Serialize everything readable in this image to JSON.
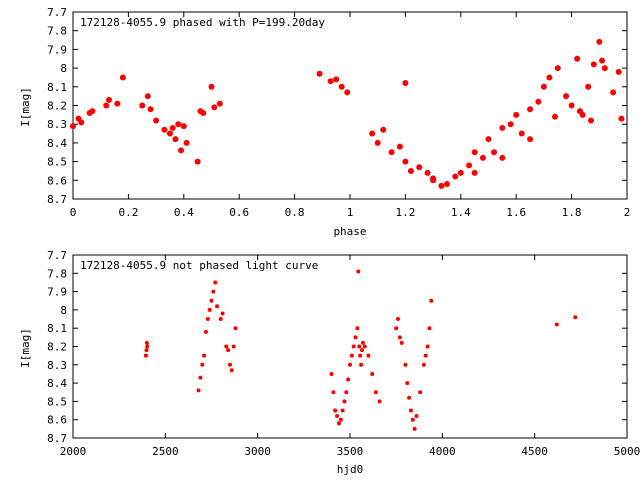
{
  "chart_data": [
    {
      "type": "scatter",
      "title": "172128-4055.9 phased with P=199.20day",
      "xlabel": "phase",
      "ylabel": "I[mag]",
      "xlim": [
        0,
        2
      ],
      "ylim": [
        8.7,
        7.7
      ],
      "y_inverted": true,
      "xticks": [
        "0",
        "0.2",
        "0.4",
        "0.6",
        "0.8",
        "1",
        "1.2",
        "1.4",
        "1.6",
        "1.8",
        "2"
      ],
      "yticks": [
        "7.7",
        "7.8",
        "7.9",
        "8",
        "8.1",
        "8.2",
        "8.3",
        "8.4",
        "8.5",
        "8.6",
        "8.7"
      ],
      "marker_color": "#ff0000",
      "x": [
        0.0,
        0.02,
        0.03,
        0.06,
        0.07,
        0.12,
        0.13,
        0.16,
        0.18,
        0.25,
        0.27,
        0.28,
        0.3,
        0.33,
        0.35,
        0.36,
        0.37,
        0.38,
        0.39,
        0.4,
        0.41,
        0.45,
        0.46,
        0.47,
        0.5,
        0.51,
        0.53,
        0.89,
        0.93,
        0.95,
        0.97,
        0.99,
        1.08,
        1.1,
        1.12,
        1.15,
        1.18,
        1.2,
        1.22,
        1.25,
        1.28,
        1.3,
        1.33,
        1.35,
        1.38,
        1.4,
        1.43,
        1.45,
        1.48,
        1.5,
        1.52,
        1.55,
        1.58,
        1.6,
        1.62,
        1.65,
        1.68,
        1.7,
        1.72,
        1.75,
        1.78,
        1.8,
        1.82,
        1.84,
        1.86,
        1.88,
        1.9,
        1.92,
        1.95,
        1.98,
        1.2,
        1.3,
        1.45,
        1.55,
        1.65,
        1.74,
        1.83,
        1.87,
        1.91,
        1.97
      ],
      "y": [
        8.31,
        8.27,
        8.29,
        8.24,
        8.23,
        8.2,
        8.17,
        8.19,
        8.05,
        8.2,
        8.15,
        8.22,
        8.28,
        8.33,
        8.35,
        8.32,
        8.38,
        8.3,
        8.44,
        8.31,
        8.4,
        8.5,
        8.23,
        8.24,
        8.1,
        8.21,
        8.19,
        8.03,
        8.07,
        8.06,
        8.1,
        8.13,
        8.35,
        8.4,
        8.33,
        8.45,
        8.42,
        8.5,
        8.55,
        8.53,
        8.56,
        8.6,
        8.63,
        8.62,
        8.58,
        8.56,
        8.52,
        8.45,
        8.48,
        8.38,
        8.45,
        8.32,
        8.3,
        8.25,
        8.35,
        8.22,
        8.18,
        8.1,
        8.05,
        8.0,
        8.15,
        8.2,
        7.95,
        8.25,
        8.1,
        7.98,
        7.86,
        8.0,
        8.13,
        8.27,
        8.08,
        8.59,
        8.56,
        8.48,
        8.38,
        8.26,
        8.23,
        8.28,
        7.96,
        8.02
      ]
    },
    {
      "type": "scatter",
      "title": "172128-4055.9 not phased light curve",
      "xlabel": "hjd0",
      "ylabel": "I[mag]",
      "xlim": [
        2000,
        5000
      ],
      "ylim": [
        8.7,
        7.7
      ],
      "y_inverted": true,
      "xticks": [
        "2000",
        "2500",
        "3000",
        "3500",
        "4000",
        "4500",
        "5000"
      ],
      "yticks": [
        "7.7",
        "7.8",
        "7.9",
        "8",
        "8.1",
        "8.2",
        "8.3",
        "8.4",
        "8.5",
        "8.6",
        "8.7"
      ],
      "marker_color": "#ff0000",
      "x": [
        2395,
        2398,
        2400,
        2402,
        2680,
        2690,
        2700,
        2710,
        2720,
        2730,
        2740,
        2750,
        2760,
        2770,
        2780,
        2800,
        2810,
        2830,
        2840,
        2850,
        2860,
        2870,
        2880,
        3400,
        3410,
        3420,
        3430,
        3440,
        3450,
        3460,
        3470,
        3480,
        3490,
        3500,
        3510,
        3520,
        3530,
        3540,
        3545,
        3550,
        3555,
        3560,
        3565,
        3570,
        3580,
        3600,
        3620,
        3640,
        3660,
        3750,
        3760,
        3770,
        3780,
        3800,
        3810,
        3820,
        3830,
        3840,
        3850,
        3860,
        3880,
        3900,
        3910,
        3920,
        3930,
        3940,
        4620,
        4720
      ],
      "y": [
        8.25,
        8.22,
        8.18,
        8.2,
        8.44,
        8.37,
        8.3,
        8.25,
        8.12,
        8.05,
        8.0,
        7.95,
        7.9,
        7.85,
        7.98,
        8.05,
        8.02,
        8.2,
        8.22,
        8.3,
        8.33,
        8.2,
        8.1,
        8.35,
        8.45,
        8.55,
        8.58,
        8.62,
        8.6,
        8.55,
        8.5,
        8.45,
        8.38,
        8.3,
        8.25,
        8.2,
        8.15,
        8.1,
        7.79,
        8.2,
        8.25,
        8.3,
        8.22,
        8.18,
        8.2,
        8.25,
        8.35,
        8.45,
        8.5,
        8.1,
        8.05,
        8.15,
        8.18,
        8.3,
        8.4,
        8.48,
        8.55,
        8.6,
        8.65,
        8.58,
        8.45,
        8.3,
        8.25,
        8.2,
        8.1,
        7.95,
        8.08,
        8.04
      ]
    }
  ]
}
